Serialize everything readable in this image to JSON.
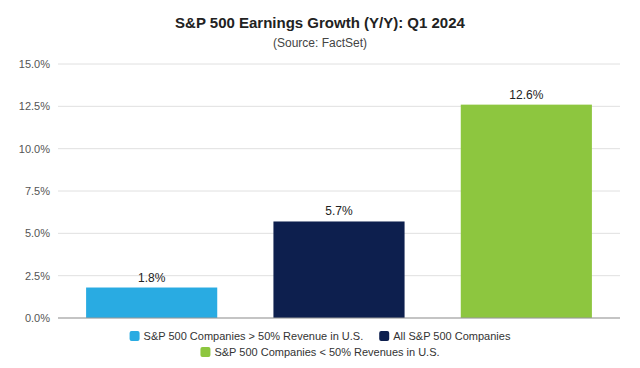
{
  "chart_data": {
    "type": "bar",
    "title": "S&P 500 Earnings Growth (Y/Y): Q1 2024",
    "subtitle": "(Source: FactSet)",
    "categories": [
      "S&P 500 Companies > 50% Revenue in U.S.",
      "All S&P 500 Companies",
      "S&P 500 Companies < 50% Revenues in U.S."
    ],
    "values": [
      1.8,
      5.7,
      12.6
    ],
    "value_labels": [
      "1.8%",
      "5.7%",
      "12.6%"
    ],
    "data_labels": true,
    "colors": [
      "#29ABE2",
      "#0D1F4E",
      "#8DC63F"
    ],
    "ylim": [
      0,
      15.0
    ],
    "yticks": [
      {
        "value": 0.0,
        "label": "0.0%"
      },
      {
        "value": 2.5,
        "label": "2.5%"
      },
      {
        "value": 5.0,
        "label": "5.0%"
      },
      {
        "value": 7.5,
        "label": "7.5%"
      },
      {
        "value": 10.0,
        "label": "10.0%"
      },
      {
        "value": 12.5,
        "label": "12.5%"
      },
      {
        "value": 15.0,
        "label": "15.0%"
      }
    ],
    "grid": true,
    "legend": "bottom",
    "tick_labels": "y"
  }
}
